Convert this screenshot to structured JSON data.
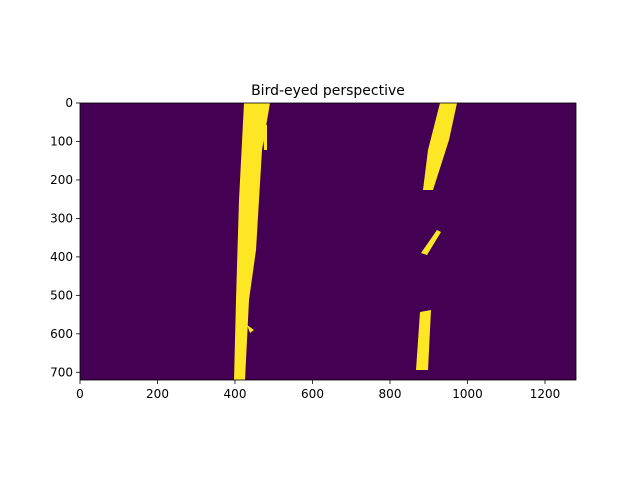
{
  "chart_data": {
    "type": "image",
    "title": "Bird-eyed perspective",
    "xlim": [
      0,
      1280
    ],
    "ylim": [
      720,
      0
    ],
    "xticks": [
      0,
      200,
      400,
      600,
      800,
      1000,
      1200
    ],
    "yticks": [
      0,
      100,
      200,
      300,
      400,
      500,
      600,
      700
    ],
    "background_color": "#440154",
    "foreground_color": "#fde725"
  }
}
